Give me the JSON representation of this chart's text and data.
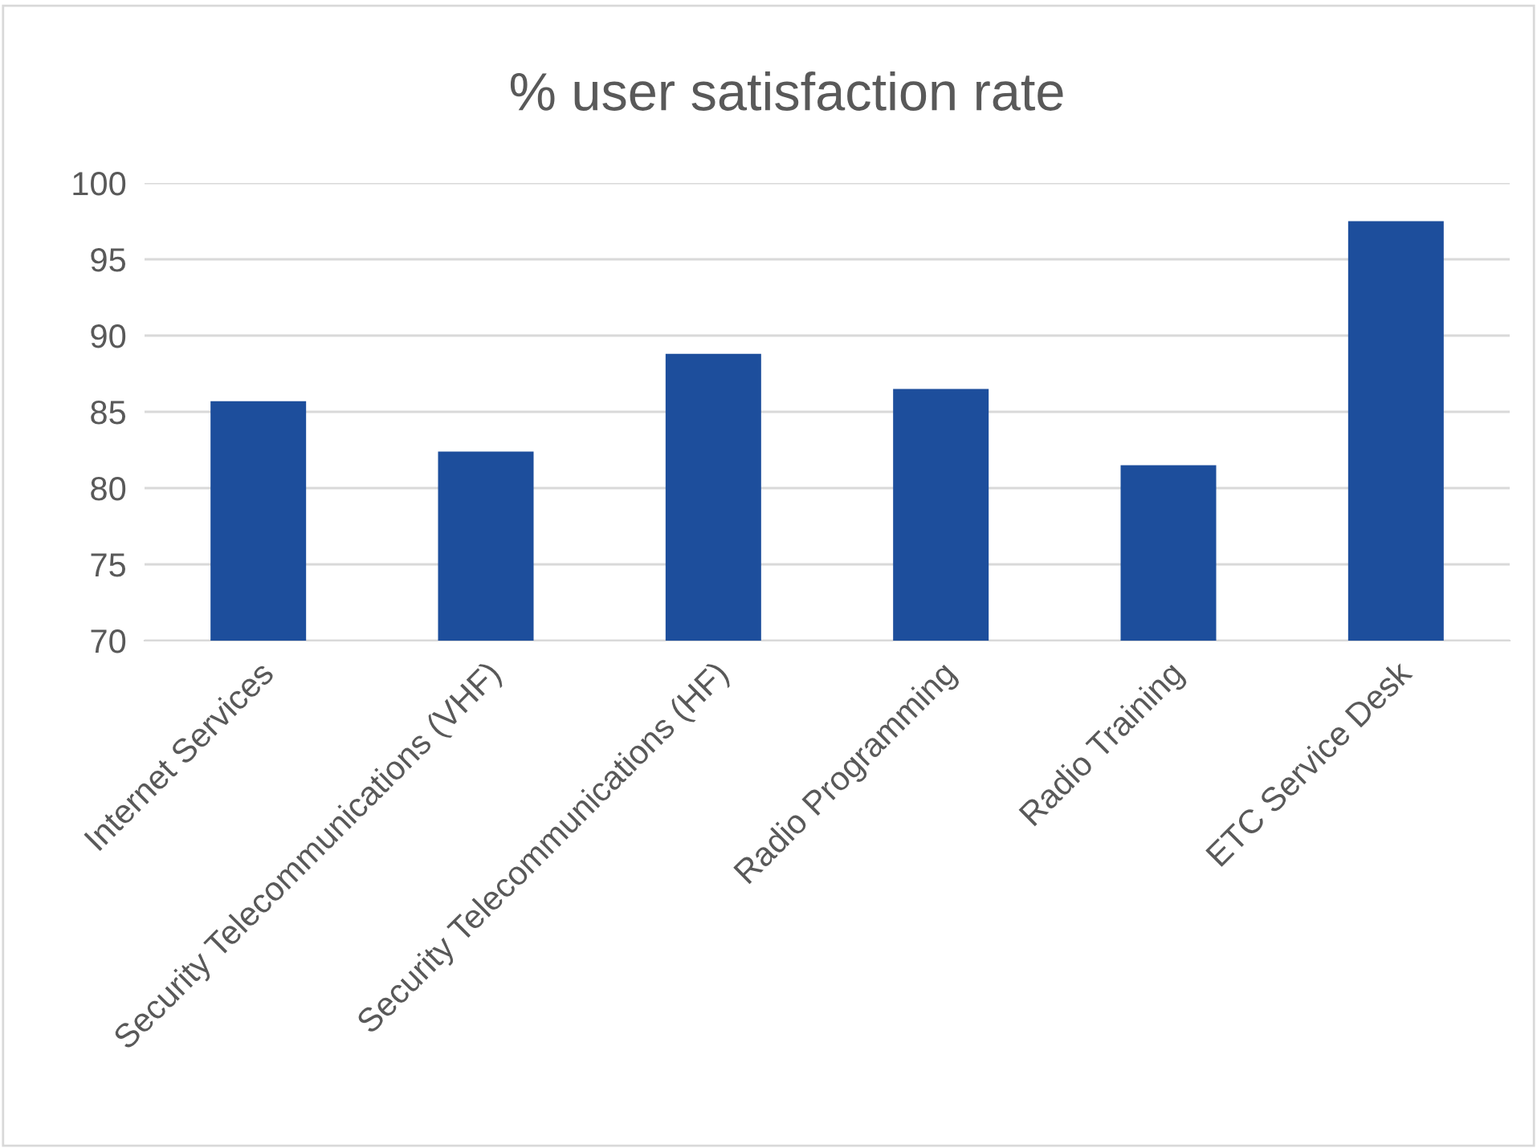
{
  "chart_data": {
    "type": "bar",
    "title": "% user satisfaction rate",
    "categories": [
      "Internet Services",
      "Security Telecommunications (VHF)",
      "Security Telecommunications (HF)",
      "Radio Programming",
      "Radio Training",
      "ETC Service Desk"
    ],
    "values": [
      85.7,
      82.4,
      88.8,
      86.5,
      81.5,
      97.5
    ],
    "color": "#1d4e9c",
    "ylim": [
      70,
      100
    ],
    "yticks": [
      70,
      75,
      80,
      85,
      90,
      95,
      100
    ],
    "grid": "y"
  }
}
